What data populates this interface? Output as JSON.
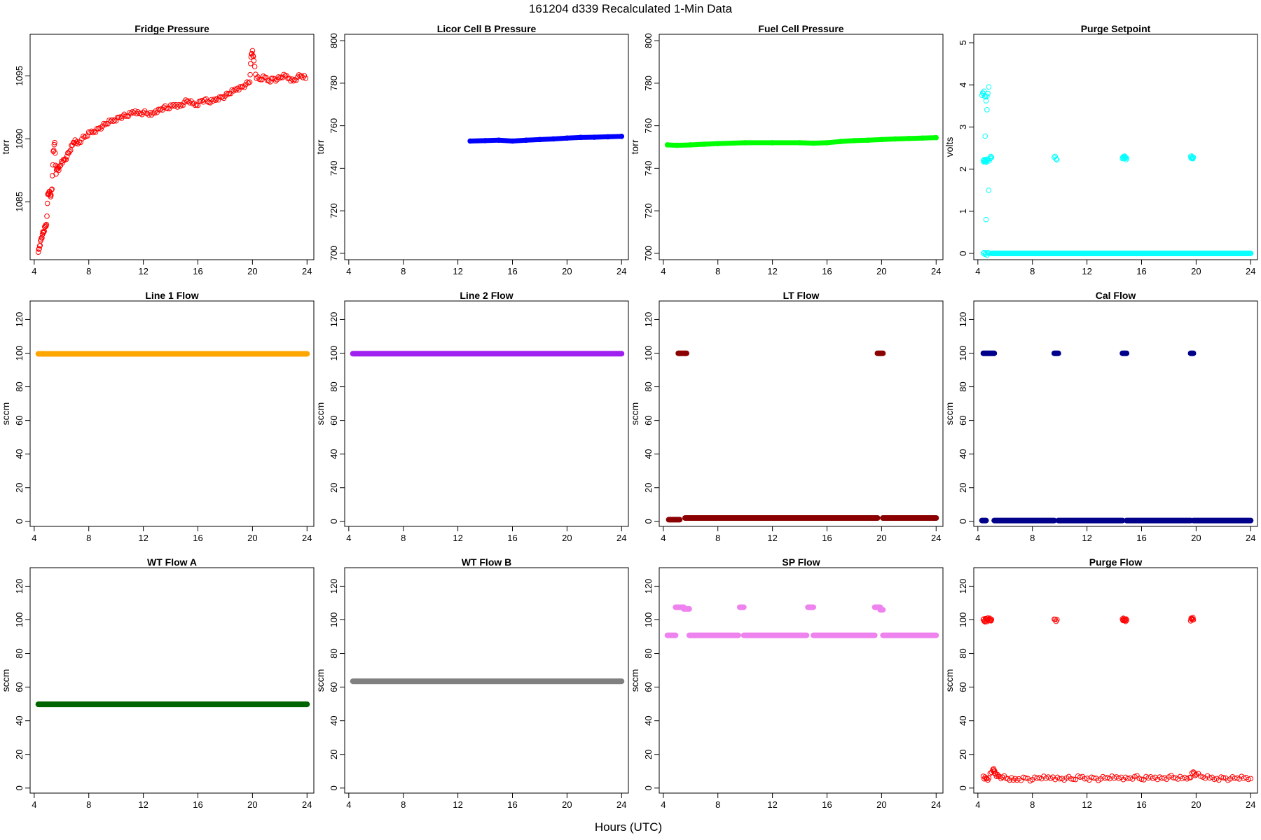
{
  "figure": {
    "title": "161204   d339   Recalculated 1-Min Data",
    "xlabel": "Hours (UTC)"
  },
  "chart_data": [
    {
      "type": "scatter",
      "title": "Fridge Pressure",
      "ylabel": "torr",
      "xlabel": "",
      "xlim": [
        3.7,
        24.5
      ],
      "ylim": [
        1080.4,
        1098.3
      ],
      "xticks": [
        4,
        8,
        12,
        16,
        20,
        24
      ],
      "yticks": [
        1085,
        1090,
        1095
      ],
      "color": "#ff0000",
      "marker": "open-circle",
      "series": [
        {
          "x": [
            4.3,
            4.4,
            4.5,
            4.6,
            4.7,
            4.8,
            4.9,
            5.0,
            5.1,
            5.2,
            5.3,
            5.4,
            5.5,
            5.6,
            5.7,
            5.8,
            6.0,
            6.2,
            6.4,
            6.6,
            6.8,
            7.0,
            7.2,
            7.5,
            7.8,
            8.1,
            8.4,
            8.7,
            9.0,
            9.3,
            9.6,
            9.9,
            10.2,
            10.5,
            10.8,
            11.1,
            11.4,
            11.7,
            12.0,
            12.3,
            12.6,
            12.9,
            13.2,
            13.5,
            13.8,
            14.1,
            14.4,
            14.7,
            15.0,
            15.3,
            15.6,
            15.9,
            16.2,
            16.5,
            16.8,
            17.1,
            17.4,
            17.7,
            18.0,
            18.3,
            18.6,
            18.9,
            19.2,
            19.5,
            19.8,
            19.9,
            20.0,
            20.1,
            20.3,
            20.6,
            20.9,
            21.2,
            21.5,
            21.8,
            22.1,
            22.4,
            22.7,
            23.0,
            23.3,
            23.6,
            23.9
          ],
          "y": [
            1081.0,
            1081.5,
            1082.0,
            1082.4,
            1082.6,
            1083.0,
            1083.2,
            1085.6,
            1085.8,
            1085.4,
            1086.0,
            1089.0,
            1089.7,
            1087.2,
            1087.8,
            1087.5,
            1088.2,
            1088.3,
            1088.6,
            1089.0,
            1089.5,
            1089.9,
            1089.6,
            1090.0,
            1090.2,
            1090.5,
            1090.6,
            1090.8,
            1091.0,
            1091.2,
            1091.4,
            1091.5,
            1091.7,
            1091.8,
            1091.8,
            1092.0,
            1092.2,
            1092.0,
            1092.1,
            1092.0,
            1091.9,
            1092.2,
            1092.3,
            1092.5,
            1092.4,
            1092.6,
            1092.7,
            1092.6,
            1092.9,
            1093.0,
            1092.8,
            1092.7,
            1093.0,
            1093.1,
            1092.9,
            1093.0,
            1093.2,
            1093.3,
            1093.4,
            1093.6,
            1093.8,
            1094.0,
            1094.1,
            1094.3,
            1094.5,
            1096.5,
            1097.0,
            1096.2,
            1094.8,
            1094.7,
            1094.9,
            1094.6,
            1094.8,
            1094.7,
            1094.9,
            1095.0,
            1094.8,
            1094.6,
            1094.9,
            1095.0,
            1094.8
          ]
        }
      ]
    },
    {
      "type": "scatter",
      "title": "Licor Cell B Pressure",
      "ylabel": "torr",
      "xlabel": "",
      "xlim": [
        3.7,
        24.5
      ],
      "ylim": [
        697,
        803
      ],
      "xticks": [
        4,
        8,
        12,
        16,
        20,
        24
      ],
      "yticks": [
        700,
        720,
        740,
        760,
        780,
        800
      ],
      "color": "#0000ff",
      "marker": "filled-dense",
      "series": [
        {
          "x": [
            12.9,
            14.0,
            15.0,
            16.0,
            17.0,
            18.0,
            19.0,
            20.0,
            21.0,
            22.0,
            23.0,
            24.0
          ],
          "y": [
            752.8,
            753.0,
            753.2,
            752.8,
            753.2,
            753.5,
            753.8,
            754.2,
            754.5,
            754.6,
            754.8,
            755.0
          ]
        }
      ]
    },
    {
      "type": "scatter",
      "title": "Fuel Cell Pressure",
      "ylabel": "torr",
      "xlabel": "",
      "xlim": [
        3.7,
        24.5
      ],
      "ylim": [
        697,
        803
      ],
      "xticks": [
        4,
        8,
        12,
        16,
        20,
        24
      ],
      "yticks": [
        700,
        720,
        740,
        760,
        780,
        800
      ],
      "color": "#00ff00",
      "marker": "filled-dense",
      "series": [
        {
          "x": [
            4.3,
            5.0,
            6.0,
            7.0,
            8.0,
            10.0,
            12.0,
            14.0,
            15.0,
            16.0,
            17.0,
            18.0,
            19.0,
            20.0,
            21.0,
            22.0,
            23.0,
            24.0
          ],
          "y": [
            751.0,
            750.8,
            751.0,
            751.3,
            751.6,
            752.0,
            752.0,
            752.0,
            751.8,
            752.0,
            752.6,
            753.0,
            753.2,
            753.5,
            753.8,
            754.0,
            754.2,
            754.4
          ]
        }
      ]
    },
    {
      "type": "scatter",
      "title": "Purge Setpoint",
      "ylabel": "volts",
      "xlabel": "",
      "xlim": [
        3.7,
        24.5
      ],
      "ylim": [
        -0.15,
        5.2
      ],
      "xticks": [
        4,
        8,
        12,
        16,
        20,
        24
      ],
      "yticks": [
        0,
        1,
        2,
        3,
        4,
        5
      ],
      "color": "#00ffff",
      "marker": "open-circle",
      "series": [
        {
          "x": [
            4.3,
            4.45,
            4.6,
            4.8,
            4.4,
            4.5,
            4.6,
            4.7,
            4.9,
            5.0,
            4.4,
            4.6,
            4.8,
            9.6,
            9.8,
            14.6,
            14.7,
            14.8,
            14.9,
            19.6,
            19.7,
            19.8
          ],
          "y": [
            3.75,
            3.85,
            3.62,
            3.95,
            2.2,
            2.18,
            2.2,
            2.22,
            2.25,
            2.28,
            0,
            0,
            0,
            2.28,
            2.22,
            2.25,
            2.3,
            2.28,
            2.26,
            2.3,
            2.25,
            2.28
          ]
        },
        {
          "segments": [
            [
              5.0,
              24.0,
              0
            ]
          ]
        }
      ]
    },
    {
      "type": "scatter",
      "title": "Line 1 Flow",
      "ylabel": "sccm",
      "xlabel": "",
      "xlim": [
        3.7,
        24.5
      ],
      "ylim": [
        -3,
        131
      ],
      "xticks": [
        4,
        8,
        12,
        16,
        20,
        24
      ],
      "yticks": [
        0,
        20,
        40,
        60,
        80,
        100,
        120
      ],
      "color": "#ffa500",
      "marker": "filled-dense",
      "series": [
        {
          "segments": [
            [
              4.3,
              24.0,
              99.6
            ]
          ]
        }
      ]
    },
    {
      "type": "scatter",
      "title": "Line 2 Flow",
      "ylabel": "sccm",
      "xlabel": "",
      "xlim": [
        3.7,
        24.5
      ],
      "ylim": [
        -3,
        131
      ],
      "xticks": [
        4,
        8,
        12,
        16,
        20,
        24
      ],
      "yticks": [
        0,
        20,
        40,
        60,
        80,
        100,
        120
      ],
      "color": "#a020f0",
      "marker": "filled-dense",
      "series": [
        {
          "segments": [
            [
              4.3,
              24.0,
              99.7
            ]
          ]
        }
      ]
    },
    {
      "type": "scatter",
      "title": "LT Flow",
      "ylabel": "sccm",
      "xlabel": "",
      "xlim": [
        3.7,
        24.5
      ],
      "ylim": [
        -3,
        131
      ],
      "xticks": [
        4,
        8,
        12,
        16,
        20,
        24
      ],
      "yticks": [
        0,
        20,
        40,
        60,
        80,
        100,
        120
      ],
      "color": "#8b0000",
      "marker": "filled-dense",
      "series": [
        {
          "segments": [
            [
              5.1,
              5.7,
              99.9
            ],
            [
              19.7,
              20.1,
              99.9
            ],
            [
              4.4,
              5.2,
              1.0
            ],
            [
              5.6,
              19.7,
              2.0
            ],
            [
              20.1,
              24.0,
              2.0
            ]
          ]
        }
      ]
    },
    {
      "type": "scatter",
      "title": "Cal Flow",
      "ylabel": "sccm",
      "xlabel": "",
      "xlim": [
        3.7,
        24.5
      ],
      "ylim": [
        -3,
        131
      ],
      "xticks": [
        4,
        8,
        12,
        16,
        20,
        24
      ],
      "yticks": [
        0,
        20,
        40,
        60,
        80,
        100,
        120
      ],
      "color": "#00008b",
      "marker": "filled-dense",
      "series": [
        {
          "segments": [
            [
              4.4,
              5.2,
              99.9
            ],
            [
              9.6,
              9.9,
              99.9
            ],
            [
              14.6,
              14.9,
              99.9
            ],
            [
              19.6,
              19.8,
              99.9
            ],
            [
              4.3,
              4.6,
              0.5
            ],
            [
              5.2,
              9.6,
              0.5
            ],
            [
              9.9,
              14.6,
              0.5
            ],
            [
              14.9,
              19.6,
              0.5
            ],
            [
              19.8,
              24.0,
              0.5
            ]
          ]
        }
      ]
    },
    {
      "type": "scatter",
      "title": "WT Flow A",
      "ylabel": "sccm",
      "xlabel": "",
      "xlim": [
        3.7,
        24.5
      ],
      "ylim": [
        -3,
        131
      ],
      "xticks": [
        4,
        8,
        12,
        16,
        20,
        24
      ],
      "yticks": [
        0,
        20,
        40,
        60,
        80,
        100,
        120
      ],
      "color": "#006400",
      "marker": "filled-dense",
      "series": [
        {
          "segments": [
            [
              4.3,
              24.0,
              49.8
            ]
          ]
        }
      ]
    },
    {
      "type": "scatter",
      "title": "WT Flow B",
      "ylabel": "sccm",
      "xlabel": "",
      "xlim": [
        3.7,
        24.5
      ],
      "ylim": [
        -3,
        131
      ],
      "xticks": [
        4,
        8,
        12,
        16,
        20,
        24
      ],
      "yticks": [
        0,
        20,
        40,
        60,
        80,
        100,
        120
      ],
      "color": "#808080",
      "marker": "filled-dense",
      "series": [
        {
          "segments": [
            [
              4.3,
              24.0,
              63.5
            ]
          ]
        }
      ]
    },
    {
      "type": "scatter",
      "title": "SP Flow",
      "ylabel": "sccm",
      "xlabel": "",
      "xlim": [
        3.7,
        24.5
      ],
      "ylim": [
        -3,
        131
      ],
      "xticks": [
        4,
        8,
        12,
        16,
        20,
        24
      ],
      "yticks": [
        0,
        20,
        40,
        60,
        80,
        100,
        120
      ],
      "color": "#ee82ee",
      "marker": "filled-dense",
      "series": [
        {
          "segments": [
            [
              4.3,
              4.9,
              90.8
            ],
            [
              4.9,
              5.5,
              107.5
            ],
            [
              5.5,
              5.9,
              106.5
            ],
            [
              5.9,
              9.5,
              90.8
            ],
            [
              9.6,
              9.9,
              107.5
            ],
            [
              9.9,
              14.5,
              90.8
            ],
            [
              14.6,
              15.0,
              107.5
            ],
            [
              15.0,
              19.5,
              90.8
            ],
            [
              19.5,
              19.9,
              107.5
            ],
            [
              19.9,
              20.1,
              106.0
            ],
            [
              20.1,
              24.0,
              90.8
            ]
          ]
        }
      ]
    },
    {
      "type": "scatter",
      "title": "Purge Flow",
      "ylabel": "sccm",
      "xlabel": "",
      "xlim": [
        3.7,
        24.5
      ],
      "ylim": [
        -3,
        131
      ],
      "xticks": [
        4,
        8,
        12,
        16,
        20,
        24
      ],
      "yticks": [
        0,
        20,
        40,
        60,
        80,
        100,
        120
      ],
      "color": "#ff0000",
      "marker": "open-circle",
      "series": [
        {
          "x": [
            4.4,
            4.5,
            4.6,
            4.7,
            4.8,
            4.9,
            5.0,
            9.6,
            9.8,
            14.6,
            14.7,
            14.8,
            14.9,
            19.6,
            19.7,
            19.8,
            4.4,
            4.6,
            4.8,
            5.1,
            5.2,
            5.3,
            5.5,
            5.8,
            6.2,
            6.6,
            7.0,
            7.5,
            8.0,
            8.5,
            9.0,
            9.5,
            10.0,
            10.5,
            11.0,
            11.5,
            12.0,
            12.5,
            13.0,
            13.5,
            14.0,
            14.5,
            15.0,
            15.5,
            16.0,
            16.5,
            17.0,
            17.5,
            18.0,
            18.5,
            19.0,
            19.5,
            19.8,
            20.0,
            20.5,
            21.0,
            21.5,
            22.0,
            22.5,
            23.0,
            23.5,
            24.0
          ],
          "y": [
            100.2,
            99.5,
            100.6,
            99.8,
            100.4,
            99.6,
            100.2,
            100.4,
            100.1,
            100.5,
            99.6,
            100.3,
            99.8,
            99.4,
            100.8,
            100.0,
            7.0,
            5.5,
            6.0,
            11.0,
            10.0,
            8.5,
            7.0,
            6.5,
            5.5,
            4.8,
            5.5,
            6.0,
            5.0,
            6.2,
            5.8,
            6.5,
            5.5,
            6.0,
            5.2,
            6.5,
            5.8,
            6.0,
            5.4,
            6.2,
            5.9,
            6.4,
            5.6,
            6.8,
            5.2,
            6.0,
            6.4,
            5.8,
            6.6,
            6.0,
            5.6,
            6.2,
            9.5,
            8.0,
            6.5,
            6.0,
            5.6,
            6.2,
            5.4,
            6.0,
            5.8,
            5.6
          ]
        }
      ]
    }
  ]
}
